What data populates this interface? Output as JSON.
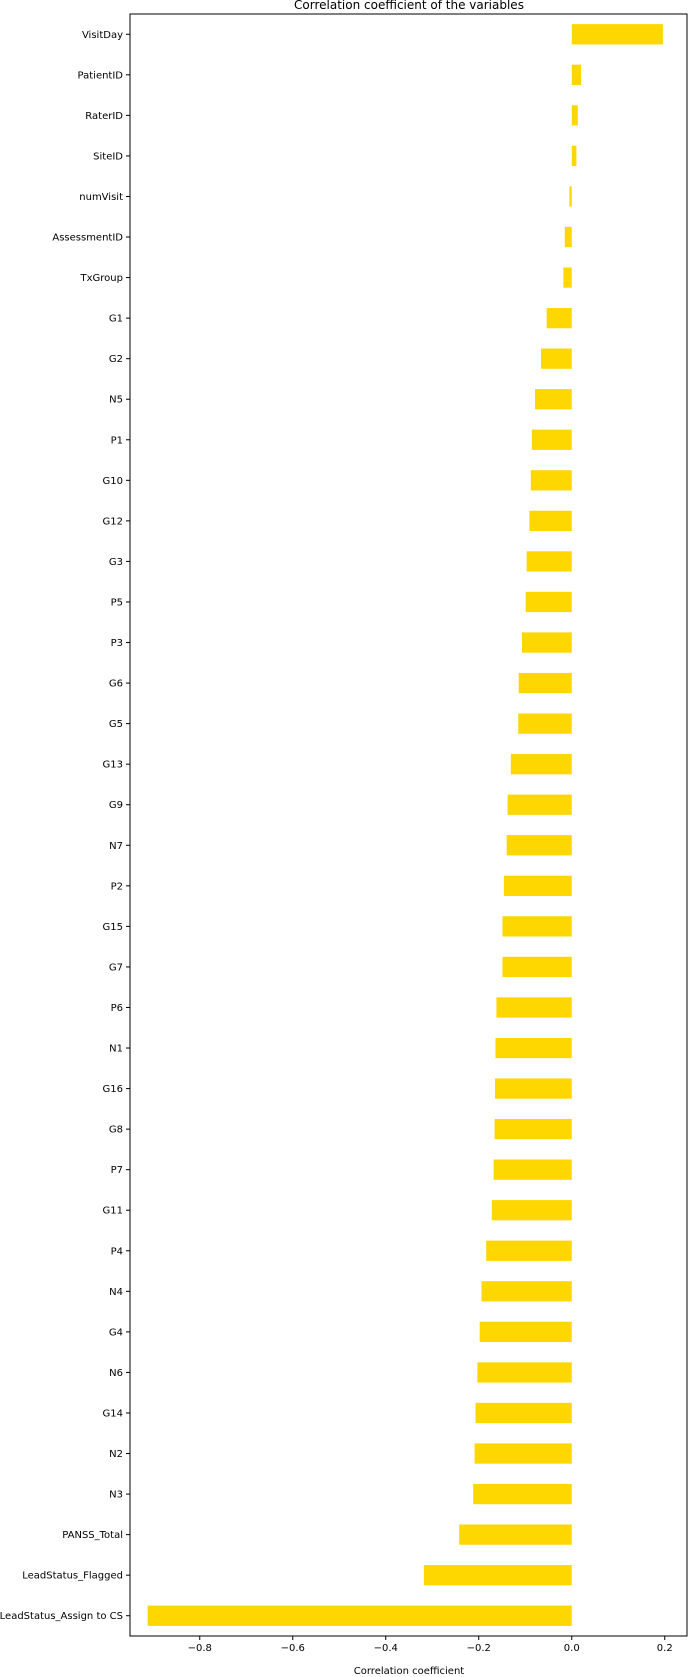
{
  "chart_data": {
    "type": "bar",
    "orientation": "horizontal",
    "title": "Correlation coefficient of the variables",
    "xlabel": "Correlation coefficient",
    "ylabel": "",
    "xlim": [
      -0.95,
      0.25
    ],
    "xticks": [
      -0.8,
      -0.6,
      -0.4,
      -0.2,
      0.0,
      0.2
    ],
    "xtick_labels": [
      "−0.8",
      "−0.6",
      "−0.4",
      "−0.2",
      "0.0",
      "0.2"
    ],
    "grid": false,
    "legend": "none",
    "bar_color": "#ffd700",
    "categories": [
      "VisitDay",
      "PatientID",
      "RaterID",
      "SiteID",
      "numVisit",
      "AssessmentID",
      "TxGroup",
      "G1",
      "G2",
      "N5",
      "P1",
      "G10",
      "G12",
      "G3",
      "P5",
      "P3",
      "G6",
      "G5",
      "G13",
      "G9",
      "N7",
      "P2",
      "G15",
      "G7",
      "P6",
      "N1",
      "G16",
      "G8",
      "P7",
      "G11",
      "P4",
      "N4",
      "G4",
      "N6",
      "G14",
      "N2",
      "N3",
      "PANSS_Total",
      "LeadStatus_Flagged",
      "LeadStatus_Assign to CS"
    ],
    "values": [
      0.196,
      0.02,
      0.013,
      0.01,
      -0.005,
      -0.015,
      -0.018,
      -0.054,
      -0.066,
      -0.079,
      -0.086,
      -0.088,
      -0.091,
      -0.097,
      -0.099,
      -0.107,
      -0.114,
      -0.115,
      -0.131,
      -0.138,
      -0.14,
      -0.146,
      -0.149,
      -0.149,
      -0.162,
      -0.164,
      -0.165,
      -0.166,
      -0.168,
      -0.172,
      -0.184,
      -0.194,
      -0.198,
      -0.203,
      -0.207,
      -0.209,
      -0.212,
      -0.242,
      -0.318,
      -0.912
    ]
  }
}
